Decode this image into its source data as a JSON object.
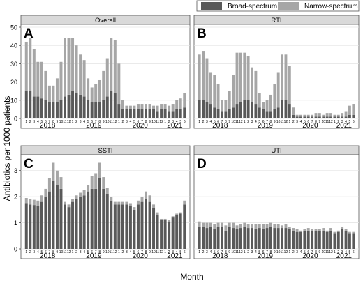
{
  "colors": {
    "broad": "#595959",
    "narrow": "#a6a6a6",
    "strip": "#d9d9d9",
    "grid": "#e4e4e4"
  },
  "legend": {
    "broad_label": "Broad-spectrum",
    "narrow_label": "Narrow-spectrum"
  },
  "axes": {
    "ylabel": "Antibiotics per 1000 patients",
    "xlabel": "Month"
  },
  "chart_data": {
    "type": "bar",
    "stacked": true,
    "year_labels": [
      "2018",
      "2019",
      "2020",
      "2021"
    ],
    "x": [
      "2018-01",
      "2018-02",
      "2018-03",
      "2018-04",
      "2018-05",
      "2018-06",
      "2018-07",
      "2018-08",
      "2018-09",
      "2018-10",
      "2018-11",
      "2018-12",
      "2019-01",
      "2019-02",
      "2019-03",
      "2019-04",
      "2019-05",
      "2019-06",
      "2019-07",
      "2019-08",
      "2019-09",
      "2019-10",
      "2019-11",
      "2019-12",
      "2020-01",
      "2020-02",
      "2020-03",
      "2020-04",
      "2020-05",
      "2020-06",
      "2020-07",
      "2020-08",
      "2020-09",
      "2020-10",
      "2020-11",
      "2020-12",
      "2021-01",
      "2021-02",
      "2021-03",
      "2021-04",
      "2021-05",
      "2021-06"
    ],
    "month_tick_labels": [
      "1",
      "2",
      "3",
      "4",
      "5",
      "6",
      "7",
      "8",
      "9",
      "10",
      "11",
      "12"
    ],
    "panels": [
      {
        "strip": "Overall",
        "letter": "A",
        "ylim": [
          0,
          50
        ],
        "yticks": [
          "0",
          "10",
          "20",
          "30",
          "40",
          "50"
        ],
        "series": [
          {
            "name": "Broad-spectrum",
            "values": [
              15,
              15,
              12,
              12,
              11,
              10,
              9,
              9,
              9,
              10,
              12,
              13,
              15,
              14,
              13,
              12,
              10,
              9,
              9,
              9,
              10,
              12,
              15,
              14,
              8,
              5,
              5,
              5,
              5,
              5,
              5,
              5,
              5,
              5,
              4,
              5,
              5,
              4,
              4,
              5,
              5,
              6
            ]
          },
          {
            "name": "Narrow-spectrum",
            "values": [
              27,
              29,
              26,
              19,
              20,
              16,
              9,
              9,
              13,
              21,
              32,
              31,
              29,
              26,
              22,
              20,
              12,
              8,
              10,
              12,
              16,
              21,
              29,
              29,
              22,
              5,
              2,
              2,
              2,
              3,
              3,
              3,
              3,
              2,
              3,
              3,
              3,
              3,
              4,
              5,
              6,
              8
            ]
          }
        ]
      },
      {
        "strip": "RTI",
        "letter": "B",
        "ylim": [
          0,
          50
        ],
        "yticks": [
          "0",
          "10",
          "20",
          "30",
          "40",
          "50"
        ],
        "series": [
          {
            "name": "Broad-spectrum",
            "values": [
              10,
              10,
              9,
              8,
              6,
              5,
              4,
              4,
              5,
              6,
              8,
              9,
              10,
              10,
              9,
              8,
              6,
              5,
              4,
              4,
              5,
              6,
              10,
              10,
              8,
              2,
              1,
              1,
              1,
              1,
              1,
              1,
              1,
              1,
              1,
              1,
              1,
              1,
              1,
              1,
              2,
              2
            ]
          },
          {
            "name": "Narrow-spectrum",
            "values": [
              25,
              27,
              24,
              17,
              18,
              14,
              6,
              6,
              10,
              18,
              28,
              27,
              26,
              24,
              19,
              18,
              8,
              4,
              6,
              9,
              14,
              19,
              25,
              25,
              21,
              4,
              1,
              1,
              1,
              1,
              1,
              2,
              2,
              1,
              2,
              2,
              1,
              1,
              2,
              3,
              5,
              6
            ]
          }
        ]
      },
      {
        "strip": "SSTI",
        "letter": "C",
        "ylim": [
          0,
          3.5
        ],
        "yticks": [
          "0",
          "1",
          "2",
          "3"
        ],
        "series": [
          {
            "name": "Broad-spectrum",
            "values": [
              1.75,
              1.7,
              1.68,
              1.65,
              1.8,
              2.0,
              2.2,
              2.6,
              2.45,
              2.3,
              1.7,
              1.6,
              1.8,
              1.9,
              2.0,
              2.05,
              2.2,
              2.3,
              2.3,
              2.7,
              2.3,
              2.1,
              1.85,
              1.7,
              1.7,
              1.7,
              1.7,
              1.65,
              1.5,
              1.7,
              1.8,
              1.9,
              1.8,
              1.55,
              1.3,
              1.1,
              1.1,
              1.05,
              1.2,
              1.3,
              1.35,
              1.7
            ]
          },
          {
            "name": "Narrow-spectrum",
            "values": [
              0.2,
              0.22,
              0.2,
              0.2,
              0.25,
              0.3,
              0.5,
              0.7,
              0.55,
              0.45,
              0.1,
              0.1,
              0.1,
              0.15,
              0.15,
              0.2,
              0.25,
              0.5,
              0.6,
              0.6,
              0.45,
              0.25,
              0.15,
              0.1,
              0.1,
              0.1,
              0.1,
              0.1,
              0.1,
              0.15,
              0.2,
              0.3,
              0.25,
              0.15,
              0.1,
              0.05,
              0.05,
              0.05,
              0.05,
              0.05,
              0.05,
              0.15
            ]
          }
        ]
      },
      {
        "strip": "UTI",
        "letter": "D",
        "ylim": [
          0,
          3.5
        ],
        "yticks": [
          "0",
          "1",
          "2",
          "3"
        ],
        "series": [
          {
            "name": "Broad-spectrum",
            "values": [
              0.85,
              0.85,
              0.8,
              0.85,
              0.75,
              0.85,
              0.85,
              0.7,
              0.85,
              0.8,
              0.75,
              0.8,
              0.85,
              0.8,
              0.8,
              0.75,
              0.8,
              0.75,
              0.8,
              0.85,
              0.8,
              0.8,
              0.8,
              0.8,
              0.75,
              0.7,
              0.65,
              0.65,
              0.7,
              0.7,
              0.7,
              0.7,
              0.7,
              0.7,
              0.65,
              0.7,
              0.6,
              0.65,
              0.75,
              0.7,
              0.6,
              0.6
            ]
          },
          {
            "name": "Narrow-spectrum",
            "values": [
              0.2,
              0.15,
              0.2,
              0.15,
              0.2,
              0.15,
              0.15,
              0.2,
              0.15,
              0.2,
              0.15,
              0.15,
              0.15,
              0.15,
              0.15,
              0.2,
              0.15,
              0.2,
              0.15,
              0.15,
              0.15,
              0.15,
              0.1,
              0.15,
              0.1,
              0.1,
              0.1,
              0.05,
              0.05,
              0.1,
              0.05,
              0.05,
              0.05,
              0.1,
              0.05,
              0.1,
              0.05,
              0.05,
              0.1,
              0.05,
              0.05,
              0.05
            ]
          }
        ]
      }
    ]
  }
}
